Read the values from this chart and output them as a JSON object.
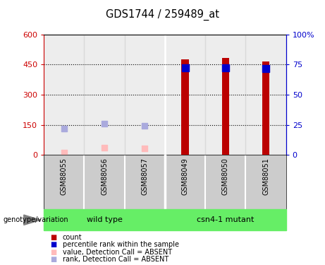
{
  "title": "GDS1744 / 259489_at",
  "samples": [
    "GSM88055",
    "GSM88056",
    "GSM88057",
    "GSM88049",
    "GSM88050",
    "GSM88051"
  ],
  "groups": [
    "wild type",
    "wild type",
    "wild type",
    "csn4-1 mutant",
    "csn4-1 mutant",
    "csn4-1 mutant"
  ],
  "group_labels": [
    "wild type",
    "csn4-1 mutant"
  ],
  "ylim_left": [
    0,
    600
  ],
  "ylim_right": [
    0,
    100
  ],
  "yticks_left": [
    0,
    150,
    300,
    450,
    600
  ],
  "yticks_right": [
    0,
    25,
    50,
    75,
    100
  ],
  "count_values": [
    null,
    null,
    null,
    475,
    482,
    467
  ],
  "rank_values": [
    null,
    null,
    null,
    72.5,
    72.5,
    71.5
  ],
  "absent_value": [
    13,
    37,
    32,
    null,
    null,
    null
  ],
  "absent_rank_values": [
    22,
    26,
    24,
    null,
    null,
    null
  ],
  "bar_color": "#bb0000",
  "rank_color": "#0000cc",
  "absent_val_color": "#ffbbbb",
  "absent_rank_color": "#aaaadd",
  "axis_color_left": "#cc0000",
  "axis_color_right": "#0000cc",
  "bg_color": "#ffffff",
  "plot_bg": "#ffffff",
  "sample_bg": "#cccccc",
  "green_color": "#66ee66",
  "bar_width": 0.18,
  "rank_marker_size": 45,
  "absent_val_marker_size": 30,
  "absent_rank_marker_size": 30,
  "legend_items": [
    [
      "#bb0000",
      "count"
    ],
    [
      "#0000cc",
      "percentile rank within the sample"
    ],
    [
      "#ffbbbb",
      "value, Detection Call = ABSENT"
    ],
    [
      "#aaaadd",
      "rank, Detection Call = ABSENT"
    ]
  ]
}
